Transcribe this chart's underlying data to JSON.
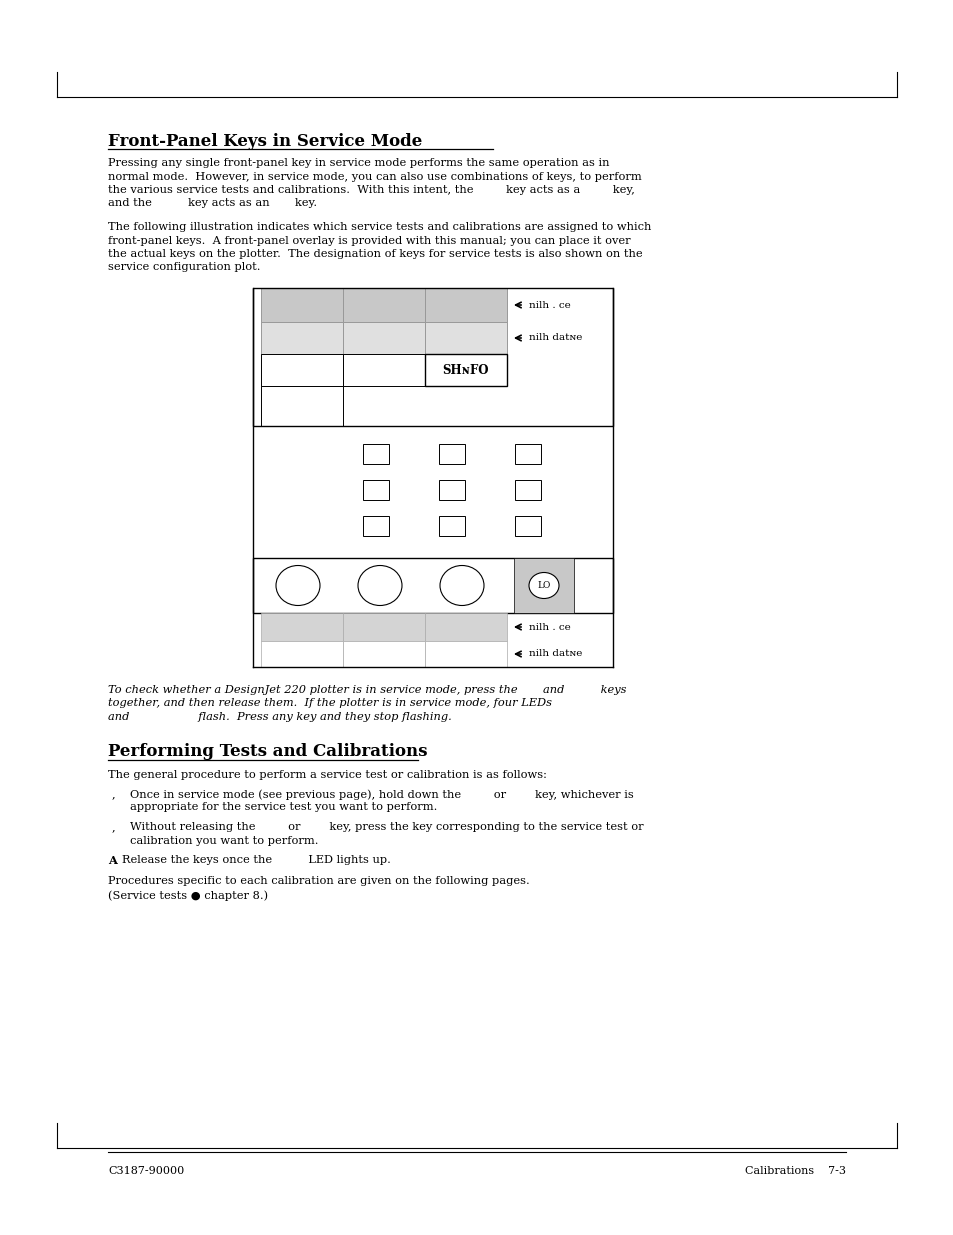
{
  "bg_color": "#ffffff",
  "text_color": "#000000",
  "title1": "Front-Panel Keys in Service Mode",
  "title2": "Performing Tests and Calibrations",
  "para1_line1": "Pressing any single front-panel key in service mode performs the same operation as in",
  "para1_line2": "normal mode.  However, in service mode, you can also use combinations of keys, to perform",
  "para1_line3": "the various service tests and calibrations.  With this intent, the         key acts as a         key,",
  "para1_line4": "and the          key acts as an       key.",
  "para2_line1": "The following illustration indicates which service tests and calibrations are assigned to which",
  "para2_line2": "front-panel keys.  A front-panel overlay is provided with this manual; you can place it over",
  "para2_line3": "the actual keys on the plotter.  The designation of keys for service tests is also shown on the",
  "para2_line4": "service configuration plot.",
  "note_line1": "To check whether a DesignJet 220 plotter is in service mode, press the       and          keys",
  "note_line2": "together, and then release them.  If the plotter is in service mode, four LEDs",
  "note_line3": "and                   flash.  Press any key and they stop flashing.",
  "para3": "The general procedure to perform a service test or calibration is as follows:",
  "bullet1_line1": "Once in service mode (see previous page), hold down the         or        key, whichever is",
  "bullet1_line2": "appropriate for the service test you want to perform.",
  "bullet2_line1": "Without releasing the         or        key, press the key corresponding to the service test or",
  "bullet2_line2": "calibration you want to perform.",
  "step_a": "Release the keys once the          LED lights up.",
  "para4_line1": "Procedures specific to each calibration are given on the following pages.",
  "para4_line2": "(Service tests ● chapter 8.)",
  "footer_left": "C3187-90000",
  "footer_right": "Calibrations    7-3",
  "label_nilh_ce": "nilh . ce",
  "label_nilh_datne": "nilh datɴe",
  "label_shgfo": "SHɴFO",
  "label_lo": "LO",
  "gray_dark": "#c8c8c8",
  "gray_light": "#e0e0e0",
  "gray_mid": "#d4d4d4"
}
